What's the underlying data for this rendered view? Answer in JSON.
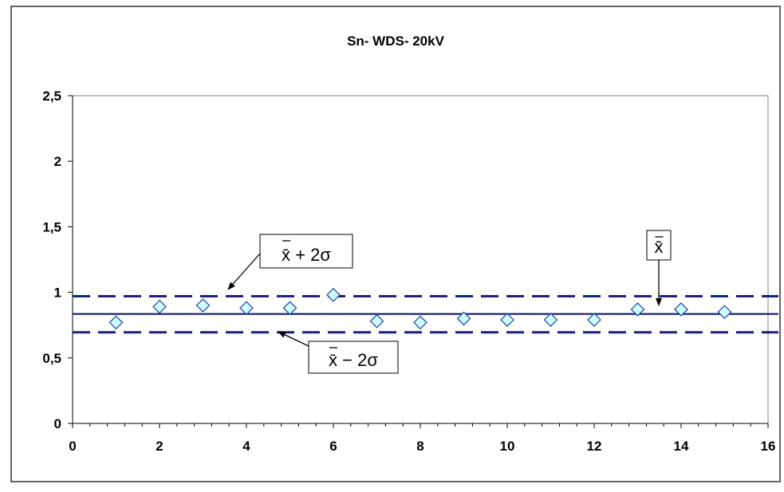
{
  "chart_data": {
    "type": "scatter",
    "title": "Sn- WDS- 20kV",
    "xlabel": "",
    "ylabel": "",
    "xlim": [
      0,
      16
    ],
    "ylim": [
      0,
      2.5
    ],
    "x_ticks": [
      0,
      2,
      4,
      6,
      8,
      10,
      12,
      14,
      16
    ],
    "x_tick_labels": [
      "0",
      "2",
      "4",
      "6",
      "8",
      "10",
      "12",
      "14",
      "16"
    ],
    "y_ticks": [
      0,
      0.5,
      1,
      1.5,
      2,
      2.5
    ],
    "y_tick_labels": [
      "0",
      "0,5",
      "1",
      "1,5",
      "2",
      "2,5"
    ],
    "grid": false,
    "series": [
      {
        "x": [
          1,
          2,
          3,
          4,
          5,
          6,
          7,
          8,
          9,
          10,
          11,
          12,
          13,
          14,
          15
        ],
        "y": [
          0.77,
          0.89,
          0.9,
          0.88,
          0.88,
          0.98,
          0.78,
          0.77,
          0.8,
          0.79,
          0.79,
          0.79,
          0.87,
          0.87,
          0.85
        ],
        "marker": "diamond",
        "marker_fill": "#ccffff",
        "marker_edge": "#1f3ea8"
      }
    ],
    "reference_lines": {
      "mean": 0.835,
      "upper": 0.97,
      "lower": 0.695,
      "color": "#1a237e"
    },
    "annotations": {
      "upper": "x̄ + 2σ",
      "lower": "x̄ − 2σ",
      "mean": "x̄"
    }
  }
}
